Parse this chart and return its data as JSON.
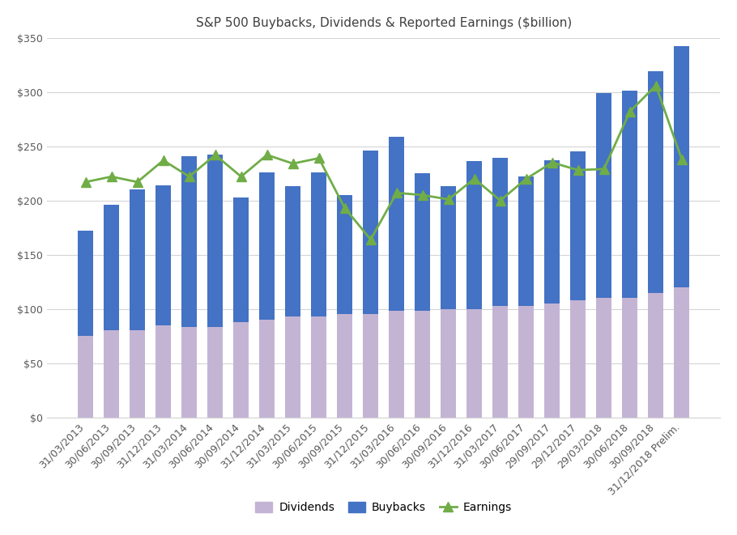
{
  "title": "S&P 500 Buybacks, Dividends & Reported Earnings ($billion)",
  "categories": [
    "31/03/2013",
    "30/06/2013",
    "30/09/2013",
    "31/12/2013",
    "31/03/2014",
    "30/06/2014",
    "30/09/2014",
    "31/12/2014",
    "31/03/2015",
    "30/06/2015",
    "30/09/2015",
    "31/12/2015",
    "31/03/2016",
    "30/06/2016",
    "30/09/2016",
    "31/12/2016",
    "31/03/2017",
    "30/06/2017",
    "29/09/2017",
    "29/12/2017",
    "29/03/2018",
    "30/06/2018",
    "30/09/2018",
    "31/12/2018 Prelim."
  ],
  "dividends": [
    75,
    80,
    80,
    85,
    83,
    83,
    88,
    90,
    93,
    93,
    95,
    95,
    98,
    98,
    100,
    100,
    103,
    103,
    105,
    108,
    110,
    110,
    115,
    120
  ],
  "buybacks": [
    97,
    116,
    130,
    129,
    158,
    159,
    115,
    136,
    120,
    133,
    110,
    151,
    161,
    127,
    113,
    136,
    136,
    119,
    132,
    137,
    189,
    191,
    204,
    222
  ],
  "earnings": [
    217,
    222,
    217,
    237,
    222,
    242,
    222,
    242,
    234,
    239,
    193,
    164,
    207,
    205,
    201,
    220,
    200,
    220,
    235,
    228,
    229,
    282,
    306,
    238
  ],
  "dividends_color": "#c4b4d4",
  "buybacks_color": "#4472c4",
  "earnings_color": "#70ad47",
  "background_color": "#ffffff",
  "grid_color": "#d4d4d4",
  "ylim": [
    0,
    350
  ],
  "yticks": [
    0,
    50,
    100,
    150,
    200,
    250,
    300,
    350
  ],
  "ytick_labels": [
    "$0",
    "$50",
    "$100",
    "$150",
    "$200",
    "$250",
    "$300",
    "$350"
  ],
  "bar_width": 0.6,
  "title_fontsize": 11,
  "tick_fontsize": 9,
  "legend_fontsize": 10
}
